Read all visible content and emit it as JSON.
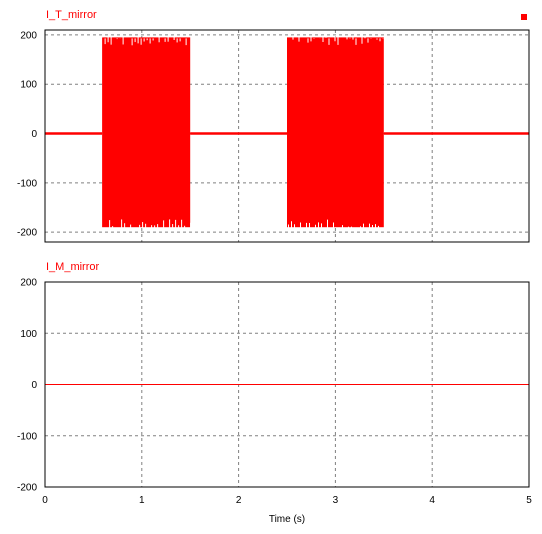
{
  "chart_data": [
    {
      "type": "line",
      "series": [
        {
          "name": "I_T_mirror",
          "color": "#ff0000",
          "segments": [
            {
              "from": 0,
              "to": 0.59,
              "kind": "flat",
              "value": 0
            },
            {
              "from": 0.59,
              "to": 1.5,
              "kind": "oscillation",
              "min": -190,
              "max": 195
            },
            {
              "from": 1.5,
              "to": 2.5,
              "kind": "flat",
              "value": 0
            },
            {
              "from": 2.5,
              "to": 3.5,
              "kind": "oscillation",
              "min": -190,
              "max": 195
            },
            {
              "from": 3.5,
              "to": 5,
              "kind": "flat",
              "value": 0
            }
          ]
        }
      ],
      "xlim": [
        0,
        5
      ],
      "ylim": [
        -220,
        210
      ],
      "yticks": [
        200,
        100,
        0,
        -100,
        -200
      ],
      "grid": true,
      "legend": "top-right marker"
    },
    {
      "type": "line",
      "series": [
        {
          "name": "I_M_mirror",
          "color": "#ff0000",
          "x": [
            0,
            5
          ],
          "y": [
            0,
            0
          ]
        }
      ],
      "xlim": [
        0,
        5
      ],
      "ylim": [
        -200,
        200
      ],
      "yticks": [
        200,
        100,
        0,
        -100,
        -200
      ],
      "xticks": [
        0,
        1,
        2,
        3,
        4,
        5
      ],
      "xlabel": "Time (s)",
      "grid": true
    }
  ]
}
